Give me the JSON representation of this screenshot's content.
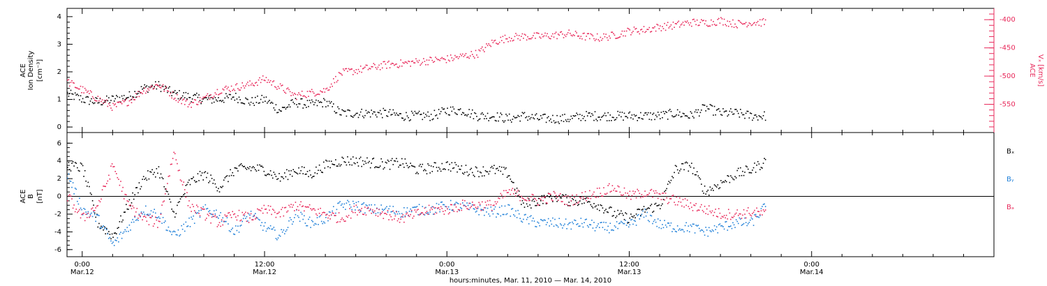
{
  "colors": {
    "black": "#000000",
    "density": "#000000",
    "vx": "#e8285a",
    "by": "#1e7fd8",
    "bz": "#e8285a",
    "bx": "#000000"
  },
  "time_axis": {
    "start": "2010-03-11T23:00",
    "end": "2010-03-14T12:00",
    "major_ticks": [
      {
        "time": "2010-03-12T00:00",
        "line1": "0:00",
        "line2": "Mar.12"
      },
      {
        "time": "2010-03-12T12:00",
        "line1": "12:00",
        "line2": "Mar.12"
      },
      {
        "time": "2010-03-13T00:00",
        "line1": "0:00",
        "line2": "Mar.13"
      },
      {
        "time": "2010-03-13T12:00",
        "line1": "12:00",
        "line2": "Mar.13"
      },
      {
        "time": "2010-03-14T00:00",
        "line1": "0:00",
        "line2": "Mar.14"
      }
    ],
    "minor_tick_hours": 2,
    "title": "hours:minutes, Mar. 11, 2010 — Mar. 14, 2010"
  },
  "chart_data": [
    {
      "type": "scatter",
      "panel": "top",
      "ylabel_left": [
        "ACE",
        "Ion Density",
        "[cm⁻³]"
      ],
      "ylabel_right": [
        "ACE",
        "Vₓ [km/s]"
      ],
      "left_axis": {
        "ylim": [
          -0.2,
          4.3
        ],
        "ticks": [
          0,
          1,
          2,
          3,
          4
        ]
      },
      "right_axis": {
        "ylim": [
          -600,
          -380
        ],
        "ticks": [
          -550,
          -500,
          -450,
          -400
        ]
      },
      "series": [
        {
          "axis": "left",
          "color": "#000000",
          "x": [
            "2010-03-11T23:00",
            "2010-03-12T00:00",
            "2010-03-12T01:00",
            "2010-03-12T02:00",
            "2010-03-12T03:00",
            "2010-03-12T04:00",
            "2010-03-12T05:00",
            "2010-03-12T06:00",
            "2010-03-12T07:00",
            "2010-03-12T08:00",
            "2010-03-12T09:00",
            "2010-03-12T10:00",
            "2010-03-12T11:00",
            "2010-03-12T12:00",
            "2010-03-12T13:00",
            "2010-03-12T14:00",
            "2010-03-12T15:00",
            "2010-03-12T16:00",
            "2010-03-12T17:00",
            "2010-03-12T18:00",
            "2010-03-12T19:00",
            "2010-03-12T20:00",
            "2010-03-12T21:00",
            "2010-03-12T22:00",
            "2010-03-12T23:00",
            "2010-03-13T00:00",
            "2010-03-13T01:00",
            "2010-03-13T02:00",
            "2010-03-13T03:00",
            "2010-03-13T04:00",
            "2010-03-13T05:00",
            "2010-03-13T06:00",
            "2010-03-13T07:00",
            "2010-03-13T08:00",
            "2010-03-13T09:00",
            "2010-03-13T10:00",
            "2010-03-13T11:00",
            "2010-03-13T12:00",
            "2010-03-13T13:00",
            "2010-03-13T14:00",
            "2010-03-13T15:00",
            "2010-03-13T16:00",
            "2010-03-13T17:00",
            "2010-03-13T18:00",
            "2010-03-13T19:00",
            "2010-03-13T20:00",
            "2010-03-13T21:00"
          ],
          "values": [
            1.2,
            1.0,
            0.9,
            1.0,
            1.1,
            1.4,
            1.5,
            1.2,
            1.1,
            1.0,
            1.0,
            1.1,
            0.9,
            1.0,
            0.6,
            0.9,
            0.8,
            0.9,
            0.5,
            0.5,
            0.5,
            0.5,
            0.4,
            0.4,
            0.4,
            0.6,
            0.6,
            0.4,
            0.4,
            0.3,
            0.4,
            0.3,
            0.3,
            0.3,
            0.4,
            0.4,
            0.4,
            0.4,
            0.4,
            0.4,
            0.5,
            0.4,
            0.7,
            0.5,
            0.5,
            0.4,
            0.4
          ]
        },
        {
          "axis": "right",
          "color": "#e8285a",
          "x": [
            "2010-03-11T23:00",
            "2010-03-12T00:00",
            "2010-03-12T01:00",
            "2010-03-12T02:00",
            "2010-03-12T03:00",
            "2010-03-12T04:00",
            "2010-03-12T05:00",
            "2010-03-12T06:00",
            "2010-03-12T07:00",
            "2010-03-12T08:00",
            "2010-03-12T09:00",
            "2010-03-12T10:00",
            "2010-03-12T11:00",
            "2010-03-12T12:00",
            "2010-03-12T13:00",
            "2010-03-12T14:00",
            "2010-03-12T15:00",
            "2010-03-12T16:00",
            "2010-03-12T17:00",
            "2010-03-12T18:00",
            "2010-03-12T19:00",
            "2010-03-12T20:00",
            "2010-03-12T21:00",
            "2010-03-12T22:00",
            "2010-03-12T23:00",
            "2010-03-13T00:00",
            "2010-03-13T01:00",
            "2010-03-13T02:00",
            "2010-03-13T03:00",
            "2010-03-13T04:00",
            "2010-03-13T05:00",
            "2010-03-13T06:00",
            "2010-03-13T07:00",
            "2010-03-13T08:00",
            "2010-03-13T09:00",
            "2010-03-13T10:00",
            "2010-03-13T11:00",
            "2010-03-13T12:00",
            "2010-03-13T13:00",
            "2010-03-13T14:00",
            "2010-03-13T15:00",
            "2010-03-13T16:00",
            "2010-03-13T17:00",
            "2010-03-13T18:00",
            "2010-03-13T19:00",
            "2010-03-13T20:00",
            "2010-03-13T21:00"
          ],
          "values": [
            -510,
            -525,
            -540,
            -555,
            -545,
            -525,
            -515,
            -535,
            -550,
            -540,
            -525,
            -520,
            -515,
            -505,
            -520,
            -535,
            -530,
            -525,
            -495,
            -490,
            -485,
            -480,
            -478,
            -475,
            -472,
            -470,
            -465,
            -460,
            -440,
            -432,
            -430,
            -430,
            -428,
            -425,
            -430,
            -432,
            -428,
            -420,
            -418,
            -413,
            -410,
            -405,
            -406,
            -402,
            -408,
            -405,
            -405
          ]
        }
      ]
    },
    {
      "type": "scatter",
      "panel": "bottom",
      "ylabel_left": [
        "ACE",
        "B",
        "[nT]"
      ],
      "ylim": [
        -6.8,
        7.2
      ],
      "yticks": [
        -6,
        -4,
        -2,
        0,
        2,
        4,
        6
      ],
      "zero_line": true,
      "legend": {
        "placement": "right",
        "entries": [
          "Bₓ",
          "Bᵧ",
          "Bₔ"
        ]
      },
      "series": [
        {
          "name": "Bₓ",
          "color": "#000000",
          "x": [
            "2010-03-11T23:00",
            "2010-03-12T00:00",
            "2010-03-12T01:00",
            "2010-03-12T02:00",
            "2010-03-12T03:00",
            "2010-03-12T04:00",
            "2010-03-12T05:00",
            "2010-03-12T06:00",
            "2010-03-12T07:00",
            "2010-03-12T08:00",
            "2010-03-12T09:00",
            "2010-03-12T10:00",
            "2010-03-12T11:00",
            "2010-03-12T12:00",
            "2010-03-12T13:00",
            "2010-03-12T14:00",
            "2010-03-12T15:00",
            "2010-03-12T16:00",
            "2010-03-12T17:00",
            "2010-03-12T18:00",
            "2010-03-12T19:00",
            "2010-03-12T20:00",
            "2010-03-12T21:00",
            "2010-03-12T22:00",
            "2010-03-12T23:00",
            "2010-03-13T00:00",
            "2010-03-13T01:00",
            "2010-03-13T02:00",
            "2010-03-13T03:00",
            "2010-03-13T04:00",
            "2010-03-13T05:00",
            "2010-03-13T06:00",
            "2010-03-13T07:00",
            "2010-03-13T08:00",
            "2010-03-13T09:00",
            "2010-03-13T10:00",
            "2010-03-13T11:00",
            "2010-03-13T12:00",
            "2010-03-13T13:00",
            "2010-03-13T14:00",
            "2010-03-13T15:00",
            "2010-03-13T16:00",
            "2010-03-13T17:00",
            "2010-03-13T18:00",
            "2010-03-13T19:00",
            "2010-03-13T20:00",
            "2010-03-13T21:00"
          ],
          "values": [
            3.5,
            3.2,
            -3.0,
            -4.5,
            -1.0,
            2.0,
            3.0,
            -2.0,
            1.5,
            2.5,
            1.0,
            3.0,
            3.2,
            3.0,
            2.0,
            3.0,
            2.5,
            3.5,
            4.0,
            4.0,
            3.8,
            3.6,
            3.8,
            3.0,
            3.2,
            3.5,
            3.0,
            2.8,
            3.0,
            2.6,
            -1.0,
            -0.5,
            0,
            -0.5,
            -0.5,
            -1.0,
            -2.0,
            -2.5,
            -1.5,
            -1.0,
            3.0,
            3.5,
            0.5,
            1.5,
            2.5,
            3.0,
            4.0
          ]
        },
        {
          "name": "Bᵧ",
          "color": "#1e7fd8",
          "x": [
            "2010-03-11T23:00",
            "2010-03-12T00:00",
            "2010-03-12T01:00",
            "2010-03-12T02:00",
            "2010-03-12T03:00",
            "2010-03-12T04:00",
            "2010-03-12T05:00",
            "2010-03-12T06:00",
            "2010-03-12T07:00",
            "2010-03-12T08:00",
            "2010-03-12T09:00",
            "2010-03-12T10:00",
            "2010-03-12T11:00",
            "2010-03-12T12:00",
            "2010-03-12T13:00",
            "2010-03-12T14:00",
            "2010-03-12T15:00",
            "2010-03-12T16:00",
            "2010-03-12T17:00",
            "2010-03-12T18:00",
            "2010-03-12T19:00",
            "2010-03-12T20:00",
            "2010-03-12T21:00",
            "2010-03-12T22:00",
            "2010-03-12T23:00",
            "2010-03-13T00:00",
            "2010-03-13T01:00",
            "2010-03-13T02:00",
            "2010-03-13T03:00",
            "2010-03-13T04:00",
            "2010-03-13T05:00",
            "2010-03-13T06:00",
            "2010-03-13T07:00",
            "2010-03-13T08:00",
            "2010-03-13T09:00",
            "2010-03-13T10:00",
            "2010-03-13T11:00",
            "2010-03-13T12:00",
            "2010-03-13T13:00",
            "2010-03-13T14:00",
            "2010-03-13T15:00",
            "2010-03-13T16:00",
            "2010-03-13T17:00",
            "2010-03-13T18:00",
            "2010-03-13T19:00",
            "2010-03-13T20:00",
            "2010-03-13T21:00"
          ],
          "values": [
            2.5,
            -1.5,
            -2.5,
            -5.5,
            -3.5,
            -1.5,
            -2.0,
            -4.5,
            -3.0,
            -1.5,
            -2.0,
            -4.0,
            -2.0,
            -3.5,
            -4.5,
            -2.0,
            -3.0,
            -2.5,
            -1.0,
            -1.0,
            -1.5,
            -1.5,
            -1.8,
            -1.5,
            -1.5,
            -1.0,
            -1.2,
            -1.5,
            -1.8,
            -1.5,
            -2.5,
            -3.0,
            -3.0,
            -3.2,
            -3.0,
            -3.5,
            -3.5,
            -3.2,
            -2.0,
            -3.2,
            -3.5,
            -3.5,
            -4.0,
            -3.5,
            -3.0,
            -3.0,
            -1.0
          ]
        },
        {
          "name": "Bₔ",
          "color": "#e8285a",
          "x": [
            "2010-03-11T23:00",
            "2010-03-12T00:00",
            "2010-03-12T01:00",
            "2010-03-12T02:00",
            "2010-03-12T03:00",
            "2010-03-12T04:00",
            "2010-03-12T05:00",
            "2010-03-12T06:00",
            "2010-03-12T07:00",
            "2010-03-12T08:00",
            "2010-03-12T09:00",
            "2010-03-12T10:00",
            "2010-03-12T11:00",
            "2010-03-12T12:00",
            "2010-03-12T13:00",
            "2010-03-12T14:00",
            "2010-03-12T15:00",
            "2010-03-12T16:00",
            "2010-03-12T17:00",
            "2010-03-12T18:00",
            "2010-03-12T19:00",
            "2010-03-12T20:00",
            "2010-03-12T21:00",
            "2010-03-12T22:00",
            "2010-03-12T23:00",
            "2010-03-13T00:00",
            "2010-03-13T01:00",
            "2010-03-13T02:00",
            "2010-03-13T03:00",
            "2010-03-13T04:00",
            "2010-03-13T05:00",
            "2010-03-13T06:00",
            "2010-03-13T07:00",
            "2010-03-13T08:00",
            "2010-03-13T09:00",
            "2010-03-13T10:00",
            "2010-03-13T11:00",
            "2010-03-13T12:00",
            "2010-03-13T13:00",
            "2010-03-13T14:00",
            "2010-03-13T15:00",
            "2010-03-13T16:00",
            "2010-03-13T17:00",
            "2010-03-13T18:00",
            "2010-03-13T19:00",
            "2010-03-13T20:00",
            "2010-03-13T21:00"
          ],
          "values": [
            0,
            -2.5,
            -1.0,
            3.5,
            -1.0,
            -2.5,
            -3.0,
            5.0,
            -1.0,
            -2.0,
            -3.0,
            -2.0,
            -2.5,
            -1.5,
            -2.0,
            -1.0,
            -1.5,
            -2.0,
            -2.5,
            -1.5,
            -1.5,
            -2.0,
            -2.5,
            -2.0,
            -1.5,
            -1.5,
            -1.0,
            -1.0,
            -1.0,
            0.5,
            0,
            -0.5,
            0,
            -0.5,
            0,
            0.5,
            1.0,
            0,
            0.5,
            0,
            -0.5,
            -1.0,
            -1.5,
            -2.0,
            -2.0,
            -1.8,
            -2.0
          ]
        }
      ]
    }
  ]
}
